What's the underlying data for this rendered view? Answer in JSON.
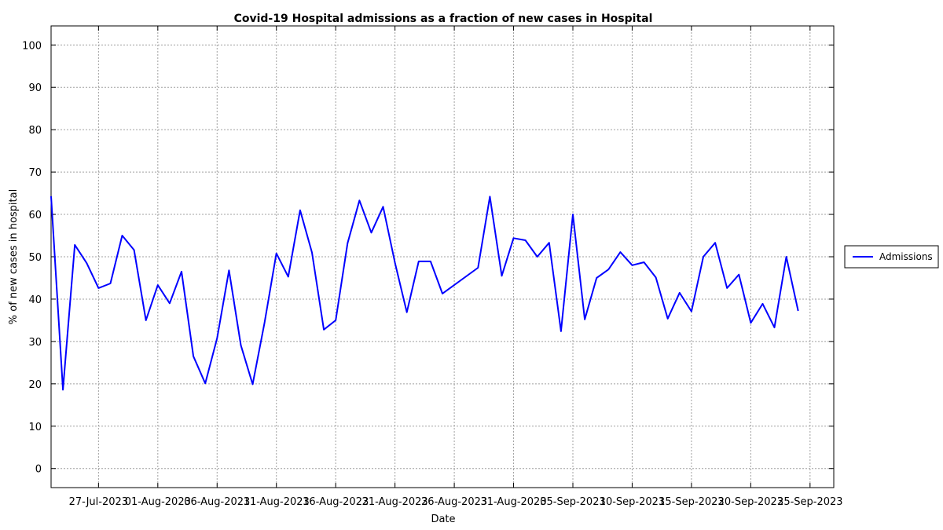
{
  "chart_data": {
    "type": "line",
    "title": "Covid-19 Hospital admissions as a fraction of new cases in Hospital",
    "xlabel": "Date",
    "ylabel": "% of new cases in hospital",
    "ylim": [
      -4.5,
      104.5
    ],
    "xlim": [
      "2023-07-23",
      "2023-09-27"
    ],
    "yticks": [
      0,
      10,
      20,
      30,
      40,
      50,
      60,
      70,
      80,
      90,
      100
    ],
    "xticks": [
      "2023-07-27",
      "2023-08-01",
      "2023-08-06",
      "2023-08-11",
      "2023-08-16",
      "2023-08-21",
      "2023-08-26",
      "2023-08-31",
      "2023-09-05",
      "2023-09-10",
      "2023-09-15",
      "2023-09-20",
      "2023-09-25"
    ],
    "xtick_labels": [
      "27-Jul-2023",
      "01-Aug-2023",
      "06-Aug-2023",
      "11-Aug-2023",
      "16-Aug-2023",
      "21-Aug-2023",
      "26-Aug-2023",
      "31-Aug-2023",
      "05-Sep-2023",
      "10-Sep-2023",
      "15-Sep-2023",
      "20-Sep-2023",
      "25-Sep-2023"
    ],
    "grid": true,
    "legend_position": "right",
    "series": [
      {
        "name": "Admissions",
        "color": "#0000ff",
        "x": [
          "2023-07-23",
          "2023-07-24",
          "2023-07-25",
          "2023-07-26",
          "2023-07-27",
          "2023-07-28",
          "2023-07-29",
          "2023-07-30",
          "2023-07-31",
          "2023-08-01",
          "2023-08-02",
          "2023-08-03",
          "2023-08-04",
          "2023-08-05",
          "2023-08-06",
          "2023-08-07",
          "2023-08-08",
          "2023-08-09",
          "2023-08-10",
          "2023-08-11",
          "2023-08-12",
          "2023-08-13",
          "2023-08-14",
          "2023-08-15",
          "2023-08-16",
          "2023-08-17",
          "2023-08-18",
          "2023-08-19",
          "2023-08-20",
          "2023-08-21",
          "2023-08-22",
          "2023-08-23",
          "2023-08-24",
          "2023-08-25",
          "2023-08-28",
          "2023-08-29",
          "2023-08-30",
          "2023-08-31",
          "2023-09-01",
          "2023-09-02",
          "2023-09-03",
          "2023-09-04",
          "2023-09-05",
          "2023-09-06",
          "2023-09-07",
          "2023-09-08",
          "2023-09-09",
          "2023-09-10",
          "2023-09-11",
          "2023-09-12",
          "2023-09-13",
          "2023-09-14",
          "2023-09-15",
          "2023-09-16",
          "2023-09-17",
          "2023-09-18",
          "2023-09-19",
          "2023-09-20",
          "2023-09-21",
          "2023-09-22",
          "2023-09-23",
          "2023-09-24"
        ],
        "values": [
          64.3,
          18.6,
          52.8,
          48.5,
          42.6,
          43.7,
          55.0,
          51.6,
          35.0,
          43.3,
          39.0,
          46.5,
          26.5,
          20.1,
          30.8,
          46.8,
          29.1,
          19.9,
          34.4,
          50.8,
          45.3,
          61.0,
          51.0,
          32.8,
          35.0,
          53.2,
          63.3,
          55.7,
          61.8,
          48.6,
          36.9,
          48.9,
          48.9,
          41.3,
          47.4,
          64.2,
          45.5,
          54.4,
          53.9,
          50.0,
          53.3,
          32.4,
          60.0,
          35.2,
          45.0,
          47.0,
          51.1,
          48.0,
          48.7,
          45.1,
          35.4,
          41.5,
          37.1,
          50.0,
          53.3,
          42.6,
          45.8,
          34.4,
          38.9,
          33.3,
          50.0,
          37.2
        ]
      }
    ]
  }
}
